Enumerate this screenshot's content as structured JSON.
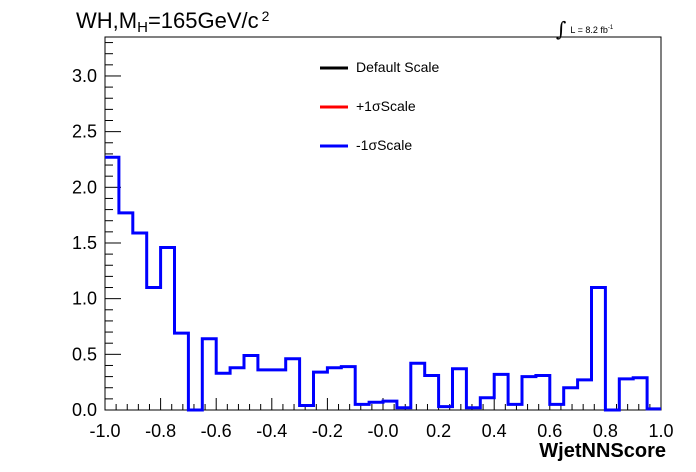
{
  "chart_data": {
    "type": "line",
    "title": {
      "text": "WH,M",
      "sub": "H",
      "rest": "=165GeV/c",
      "sup": "2"
    },
    "lumi": {
      "integral": "∫",
      "text": "L = 8.2 fb",
      "exp": "-1"
    },
    "xlabel": "WjetNNScore",
    "ylabel": "",
    "xlim": [
      -1.0,
      1.0
    ],
    "ylim": [
      0,
      3.35
    ],
    "x_ticks": [
      "-1.0",
      "-0.8",
      "-0.6",
      "-0.4",
      "-0.2",
      "-0.0",
      "0.2",
      "0.4",
      "0.6",
      "0.8",
      "1.0"
    ],
    "y_ticks": [
      "0.0",
      "0.5",
      "1.0",
      "1.5",
      "2.0",
      "2.5",
      "3.0"
    ],
    "legend": {
      "position": "top-center",
      "entries": [
        {
          "label": "Default Scale",
          "color": "#000000"
        },
        {
          "label": "+1σScale",
          "color": "#ff0000"
        },
        {
          "label": "-1σScale",
          "color": "#0000ff"
        }
      ]
    },
    "bin_edges": [
      -1.0,
      -0.95,
      -0.9,
      -0.85,
      -0.8,
      -0.75,
      -0.7,
      -0.65,
      -0.6,
      -0.55,
      -0.5,
      -0.45,
      -0.4,
      -0.35,
      -0.3,
      -0.25,
      -0.2,
      -0.15,
      -0.1,
      -0.05,
      0.0,
      0.05,
      0.1,
      0.15,
      0.2,
      0.25,
      0.3,
      0.35,
      0.4,
      0.45,
      0.5,
      0.55,
      0.6,
      0.65,
      0.7,
      0.75,
      0.8,
      0.85,
      0.9,
      0.95,
      1.0
    ],
    "series": [
      {
        "name": "-1σScale",
        "color": "#0000ff",
        "values": [
          2.27,
          1.77,
          1.59,
          1.1,
          1.46,
          0.69,
          0.0,
          0.64,
          0.33,
          0.38,
          0.49,
          0.36,
          0.36,
          0.46,
          0.04,
          0.34,
          0.38,
          0.39,
          0.05,
          0.07,
          0.08,
          0.02,
          0.42,
          0.31,
          0.03,
          0.37,
          0.02,
          0.11,
          0.32,
          0.05,
          0.3,
          0.31,
          0.05,
          0.2,
          0.27,
          1.1,
          0.0,
          0.28,
          0.29,
          0.01
        ]
      }
    ]
  }
}
